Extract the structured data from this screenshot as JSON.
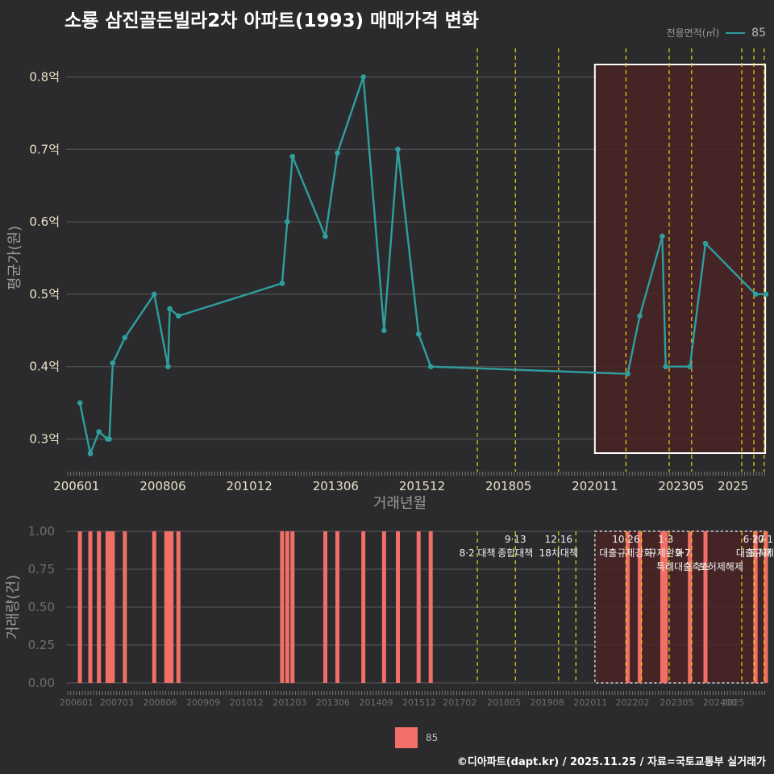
{
  "title": "소룡 삼진골든빌라2차 아파트(1993) 매매가격 변화",
  "legend": {
    "title": "전용면적(㎡)",
    "series_label": "85"
  },
  "footer": "©디아파트(dapt.kr) / 2025.11.25 / 자료=국토교통부 실거래가",
  "colors": {
    "line": "#2f9e9e",
    "bar": "#f26f67",
    "policy": "#e8d21c",
    "highlight_fill": "#4a2326",
    "background": "#2b2b2d"
  },
  "chart_data": [
    {
      "type": "line",
      "title": "",
      "xlabel": "거래년월",
      "ylabel": "평균가(원)",
      "ylim": [
        0.255,
        0.845
      ],
      "xlim": [
        2005.7,
        2025.95
      ],
      "y_ticks": [
        0.3,
        0.4,
        0.5,
        0.6,
        0.7,
        0.8
      ],
      "y_tick_labels": [
        "0.3억",
        "0.4억",
        "0.5억",
        "0.6억",
        "0.7억",
        "0.8억"
      ],
      "x_tick_values": [
        2006.0,
        2008.5,
        2011.0,
        2013.5,
        2016.0,
        2018.5,
        2021.0,
        2023.5,
        2025.0
      ],
      "x_tick_labels": [
        "200601",
        "200806",
        "201012",
        "201306",
        "201512",
        "201805",
        "202011",
        "202305",
        "2025"
      ],
      "series": [
        {
          "name": "85",
          "x": [
            2006.1,
            2006.4,
            2006.65,
            2006.9,
            2006.95,
            2007.05,
            2007.4,
            2008.25,
            2008.65,
            2008.7,
            2008.95,
            2011.95,
            2012.1,
            2012.25,
            2013.2,
            2013.55,
            2014.3,
            2014.9,
            2015.3,
            2015.9,
            2016.25,
            2021.95,
            2022.3,
            2022.95,
            2023.05,
            2023.75,
            2024.2,
            2025.65,
            2025.95
          ],
          "values": [
            0.35,
            0.28,
            0.31,
            0.3,
            0.3,
            0.405,
            0.44,
            0.5,
            0.4,
            0.48,
            0.47,
            0.515,
            0.6,
            0.69,
            0.58,
            0.695,
            0.8,
            0.45,
            0.7,
            0.445,
            0.4,
            0.39,
            0.47,
            0.58,
            0.4,
            0.4,
            0.57,
            0.5,
            0.5
          ]
        }
      ],
      "highlight_range": [
        2021.0,
        2025.93
      ],
      "policy_lines": [
        2017.6,
        2018.7,
        2019.95,
        2021.9,
        2023.15,
        2023.8,
        2025.25,
        2025.6,
        2025.9
      ]
    },
    {
      "type": "bar",
      "xlabel": "",
      "ylabel": "거래량(건)",
      "ylim": [
        0,
        1
      ],
      "xlim": [
        2005.7,
        2025.95
      ],
      "y_ticks": [
        0,
        0.25,
        0.5,
        0.75,
        1
      ],
      "y_tick_labels": [
        "0.00",
        "0.25",
        "0.50",
        "0.75",
        "1.00"
      ],
      "x_tick_values": [
        2006.0,
        2007.17,
        2008.42,
        2009.67,
        2010.92,
        2012.17,
        2013.42,
        2014.67,
        2015.92,
        2017.09,
        2018.37,
        2019.62,
        2020.87,
        2022.09,
        2023.37,
        2024.62,
        2025.0
      ],
      "x_tick_labels": [
        "200601",
        "200703",
        "200806",
        "200909",
        "201012",
        "201203",
        "201306",
        "201409",
        "201512",
        "201702",
        "201805",
        "201908",
        "202011",
        "202202",
        "202305",
        "202408",
        "2025"
      ],
      "series": [
        {
          "name": "85",
          "x": [
            2006.1,
            2006.4,
            2006.65,
            2006.9,
            2006.97,
            2007.05,
            2007.4,
            2008.25,
            2008.6,
            2008.68,
            2008.75,
            2008.95,
            2011.95,
            2012.1,
            2012.25,
            2013.2,
            2013.55,
            2014.3,
            2014.9,
            2015.3,
            2015.9,
            2016.25,
            2021.95,
            2022.3,
            2022.95,
            2023.05,
            2023.75,
            2024.2,
            2025.65,
            2025.95
          ],
          "values": [
            1,
            1,
            1,
            1,
            1,
            1,
            1,
            1,
            1,
            1,
            1,
            1,
            1,
            1,
            1,
            1,
            1,
            1,
            1,
            1,
            1,
            1,
            1,
            1,
            1,
            1,
            1,
            1,
            1,
            1
          ]
        }
      ],
      "highlight_range": [
        2021.0,
        2025.93
      ],
      "policy_lines": [
        2017.6,
        2018.7,
        2019.95,
        2020.45,
        2021.9,
        2022.35,
        2023.15,
        2023.8,
        2025.25,
        2025.6,
        2025.9
      ],
      "annotations": [
        {
          "x": 2017.6,
          "row": 1,
          "text": "8·2 대책"
        },
        {
          "x": 2018.7,
          "row": 0,
          "text": "9·13"
        },
        {
          "x": 2018.7,
          "row": 1,
          "text": "종합대책"
        },
        {
          "x": 2019.95,
          "row": 0,
          "text": "12·16"
        },
        {
          "x": 2019.95,
          "row": 1,
          "text": "18차대책"
        },
        {
          "x": 2021.9,
          "row": 0,
          "text": "10·26"
        },
        {
          "x": 2021.9,
          "row": 1,
          "text": "대출규제강화"
        },
        {
          "x": 2023.05,
          "row": 0,
          "text": "1·3"
        },
        {
          "x": 2023.05,
          "row": 1,
          "text": "규제완화"
        },
        {
          "x": 2023.55,
          "row": 1,
          "text": "9·7"
        },
        {
          "x": 2023.55,
          "row": 2,
          "text": "특례대출축소"
        },
        {
          "x": 2024.65,
          "row": 2,
          "text": "토허제해제"
        },
        {
          "x": 2025.6,
          "row": 0,
          "text": "6·27"
        },
        {
          "x": 2025.6,
          "row": 1,
          "text": "대출규제"
        },
        {
          "x": 2025.85,
          "row": 0,
          "text": "10·1"
        },
        {
          "x": 2025.85,
          "row": 1,
          "text": "토허제"
        }
      ]
    }
  ]
}
